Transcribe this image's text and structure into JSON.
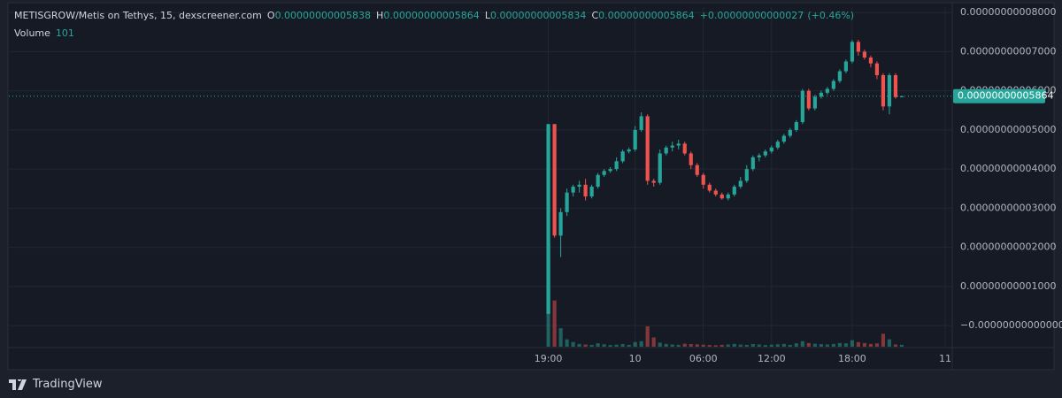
{
  "chart_data": {
    "type": "candlestick",
    "title": "METISGROW/Metis on Tethys, 15, dexscreener.com",
    "ohlc_legend": [
      {
        "key": "O",
        "value": "0.00000000005838"
      },
      {
        "key": "H",
        "value": "0.00000000005864"
      },
      {
        "key": "L",
        "value": "0.00000000005834"
      },
      {
        "key": "C",
        "value": "0.00000000005864"
      }
    ],
    "change": "+0.00000000000027",
    "change_pct": "(+0.46%)",
    "up_color": "#26a69a",
    "down_color": "#ef5350",
    "open": [
      3e-12,
      5.15e-11,
      2.3e-11,
      2.9e-11,
      3.4e-11,
      3.55e-11,
      3.6e-11,
      3.3e-11,
      3.55e-11,
      3.85e-11,
      3.95e-11,
      4e-11,
      4.2e-11,
      4.45e-11,
      4.5e-11,
      5e-11,
      5.35e-11,
      3.7e-11,
      3.65e-11,
      4.4e-11,
      4.55e-11,
      4.6e-11,
      4.65e-11,
      4.4e-11,
      4.1e-11,
      3.85e-11,
      3.6e-11,
      3.45e-11,
      3.35e-11,
      3.25e-11,
      3.35e-11,
      3.55e-11,
      3.7e-11,
      4e-11,
      4.3e-11,
      4.35e-11,
      4.45e-11,
      4.55e-11,
      4.7e-11,
      4.85e-11,
      5e-11,
      5.2e-11,
      6e-11,
      5.55e-11,
      5.85e-11,
      5.95e-11,
      6.05e-11,
      6.25e-11,
      6.5e-11,
      6.75e-11,
      7.25e-11,
      7e-11,
      6.85e-11,
      6.7e-11,
      6.4e-11,
      5.6e-11,
      6.4e-11,
      5.838e-11
    ],
    "high": [
      5.15e-11,
      5.15e-11,
      3e-11,
      3.5e-11,
      3.6e-11,
      3.7e-11,
      3.75e-11,
      3.6e-11,
      3.9e-11,
      4e-11,
      4.05e-11,
      4.3e-11,
      4.5e-11,
      4.55e-11,
      5.1e-11,
      5.45e-11,
      5.4e-11,
      3.75e-11,
      4.5e-11,
      4.6e-11,
      4.7e-11,
      4.75e-11,
      4.7e-11,
      4.45e-11,
      4.15e-11,
      3.9e-11,
      3.65e-11,
      3.5e-11,
      3.4e-11,
      3.4e-11,
      3.6e-11,
      3.8e-11,
      4.1e-11,
      4.35e-11,
      4.4e-11,
      4.5e-11,
      4.6e-11,
      4.75e-11,
      4.9e-11,
      5.05e-11,
      5.25e-11,
      6.05e-11,
      6.05e-11,
      5.9e-11,
      6e-11,
      6.1e-11,
      6.3e-11,
      6.55e-11,
      6.8e-11,
      7.3e-11,
      7.3e-11,
      7.05e-11,
      6.9e-11,
      6.75e-11,
      6.45e-11,
      6.45e-11,
      6.45e-11,
      5.864e-11
    ],
    "low": [
      3e-12,
      2.25e-11,
      1.75e-11,
      2.8e-11,
      3.3e-11,
      3.4e-11,
      3.2e-11,
      3.25e-11,
      3.5e-11,
      3.8e-11,
      3.9e-11,
      3.95e-11,
      4.15e-11,
      4.4e-11,
      4.45e-11,
      4.95e-11,
      3.6e-11,
      3.55e-11,
      3.6e-11,
      4.35e-11,
      4.45e-11,
      4.5e-11,
      4.35e-11,
      4e-11,
      3.8e-11,
      3.5e-11,
      3.4e-11,
      3.3e-11,
      3.22e-11,
      3.2e-11,
      3.3e-11,
      3.5e-11,
      3.65e-11,
      3.95e-11,
      4.2e-11,
      4.3e-11,
      4.4e-11,
      4.5e-11,
      4.65e-11,
      4.8e-11,
      4.95e-11,
      5.15e-11,
      5.5e-11,
      5.5e-11,
      5.8e-11,
      5.9e-11,
      6e-11,
      6.2e-11,
      6.45e-11,
      6.7e-11,
      6.9e-11,
      6.8e-11,
      6.6e-11,
      6.3e-11,
      5.5e-11,
      5.4e-11,
      5.8e-11,
      5.834e-11
    ],
    "close": [
      5.15e-11,
      2.3e-11,
      2.9e-11,
      3.4e-11,
      3.55e-11,
      3.6e-11,
      3.3e-11,
      3.55e-11,
      3.85e-11,
      3.95e-11,
      4e-11,
      4.2e-11,
      4.45e-11,
      4.5e-11,
      5e-11,
      5.35e-11,
      3.7e-11,
      3.65e-11,
      4.4e-11,
      4.55e-11,
      4.6e-11,
      4.65e-11,
      4.4e-11,
      4.1e-11,
      3.85e-11,
      3.6e-11,
      3.45e-11,
      3.35e-11,
      3.25e-11,
      3.35e-11,
      3.55e-11,
      3.7e-11,
      4e-11,
      4.3e-11,
      4.35e-11,
      4.45e-11,
      4.55e-11,
      4.7e-11,
      4.85e-11,
      5e-11,
      5.2e-11,
      6e-11,
      5.55e-11,
      5.85e-11,
      5.95e-11,
      6.05e-11,
      6.25e-11,
      6.5e-11,
      6.75e-11,
      7.25e-11,
      7e-11,
      6.85e-11,
      6.7e-11,
      6.4e-11,
      5.6e-11,
      6.4e-11,
      5.837e-11,
      5.864e-11
    ],
    "volume": {
      "name": "Volume",
      "values": [
        5500,
        2500,
        1000,
        400,
        250,
        150,
        120,
        100,
        180,
        130,
        90,
        110,
        140,
        100,
        250,
        300,
        1100,
        500,
        220,
        150,
        120,
        100,
        160,
        140,
        130,
        110,
        90,
        80,
        100,
        120,
        150,
        110,
        100,
        140,
        120,
        90,
        110,
        130,
        150,
        100,
        180,
        300,
        200,
        160,
        140,
        120,
        150,
        200,
        180,
        350,
        250,
        200,
        150,
        180,
        700,
        400,
        120,
        101
      ]
    },
    "last_price": {
      "value": 5.864e-11,
      "label": "0.00000000005864"
    },
    "xlim": [
      -87,
      65
    ],
    "xticks": [
      {
        "value": 0,
        "label": "19:00"
      },
      {
        "value": 14,
        "label": "10"
      },
      {
        "value": 25,
        "label": "06:00"
      },
      {
        "value": 36,
        "label": "12:00"
      },
      {
        "value": 49,
        "label": "18:00"
      },
      {
        "value": 64,
        "label": "11"
      }
    ],
    "ylim": [
      -5.4e-12,
      8.14e-11
    ],
    "yticks": [
      {
        "value": 8e-11,
        "label": "0.00000000008000"
      },
      {
        "value": 7e-11,
        "label": "0.00000000007000"
      },
      {
        "value": 6e-11,
        "label": "0.00000000006000"
      },
      {
        "value": 5e-11,
        "label": "0.00000000005000"
      },
      {
        "value": 4e-11,
        "label": "0.00000000004000"
      },
      {
        "value": 3e-11,
        "label": "0.00000000003000"
      },
      {
        "value": 2e-11,
        "label": "0.00000000002000"
      },
      {
        "value": 1e-11,
        "label": "0.00000000001000"
      },
      {
        "value": 0,
        "label": "−0.00000000000000"
      }
    ],
    "grid": true,
    "brand": "TradingView"
  }
}
